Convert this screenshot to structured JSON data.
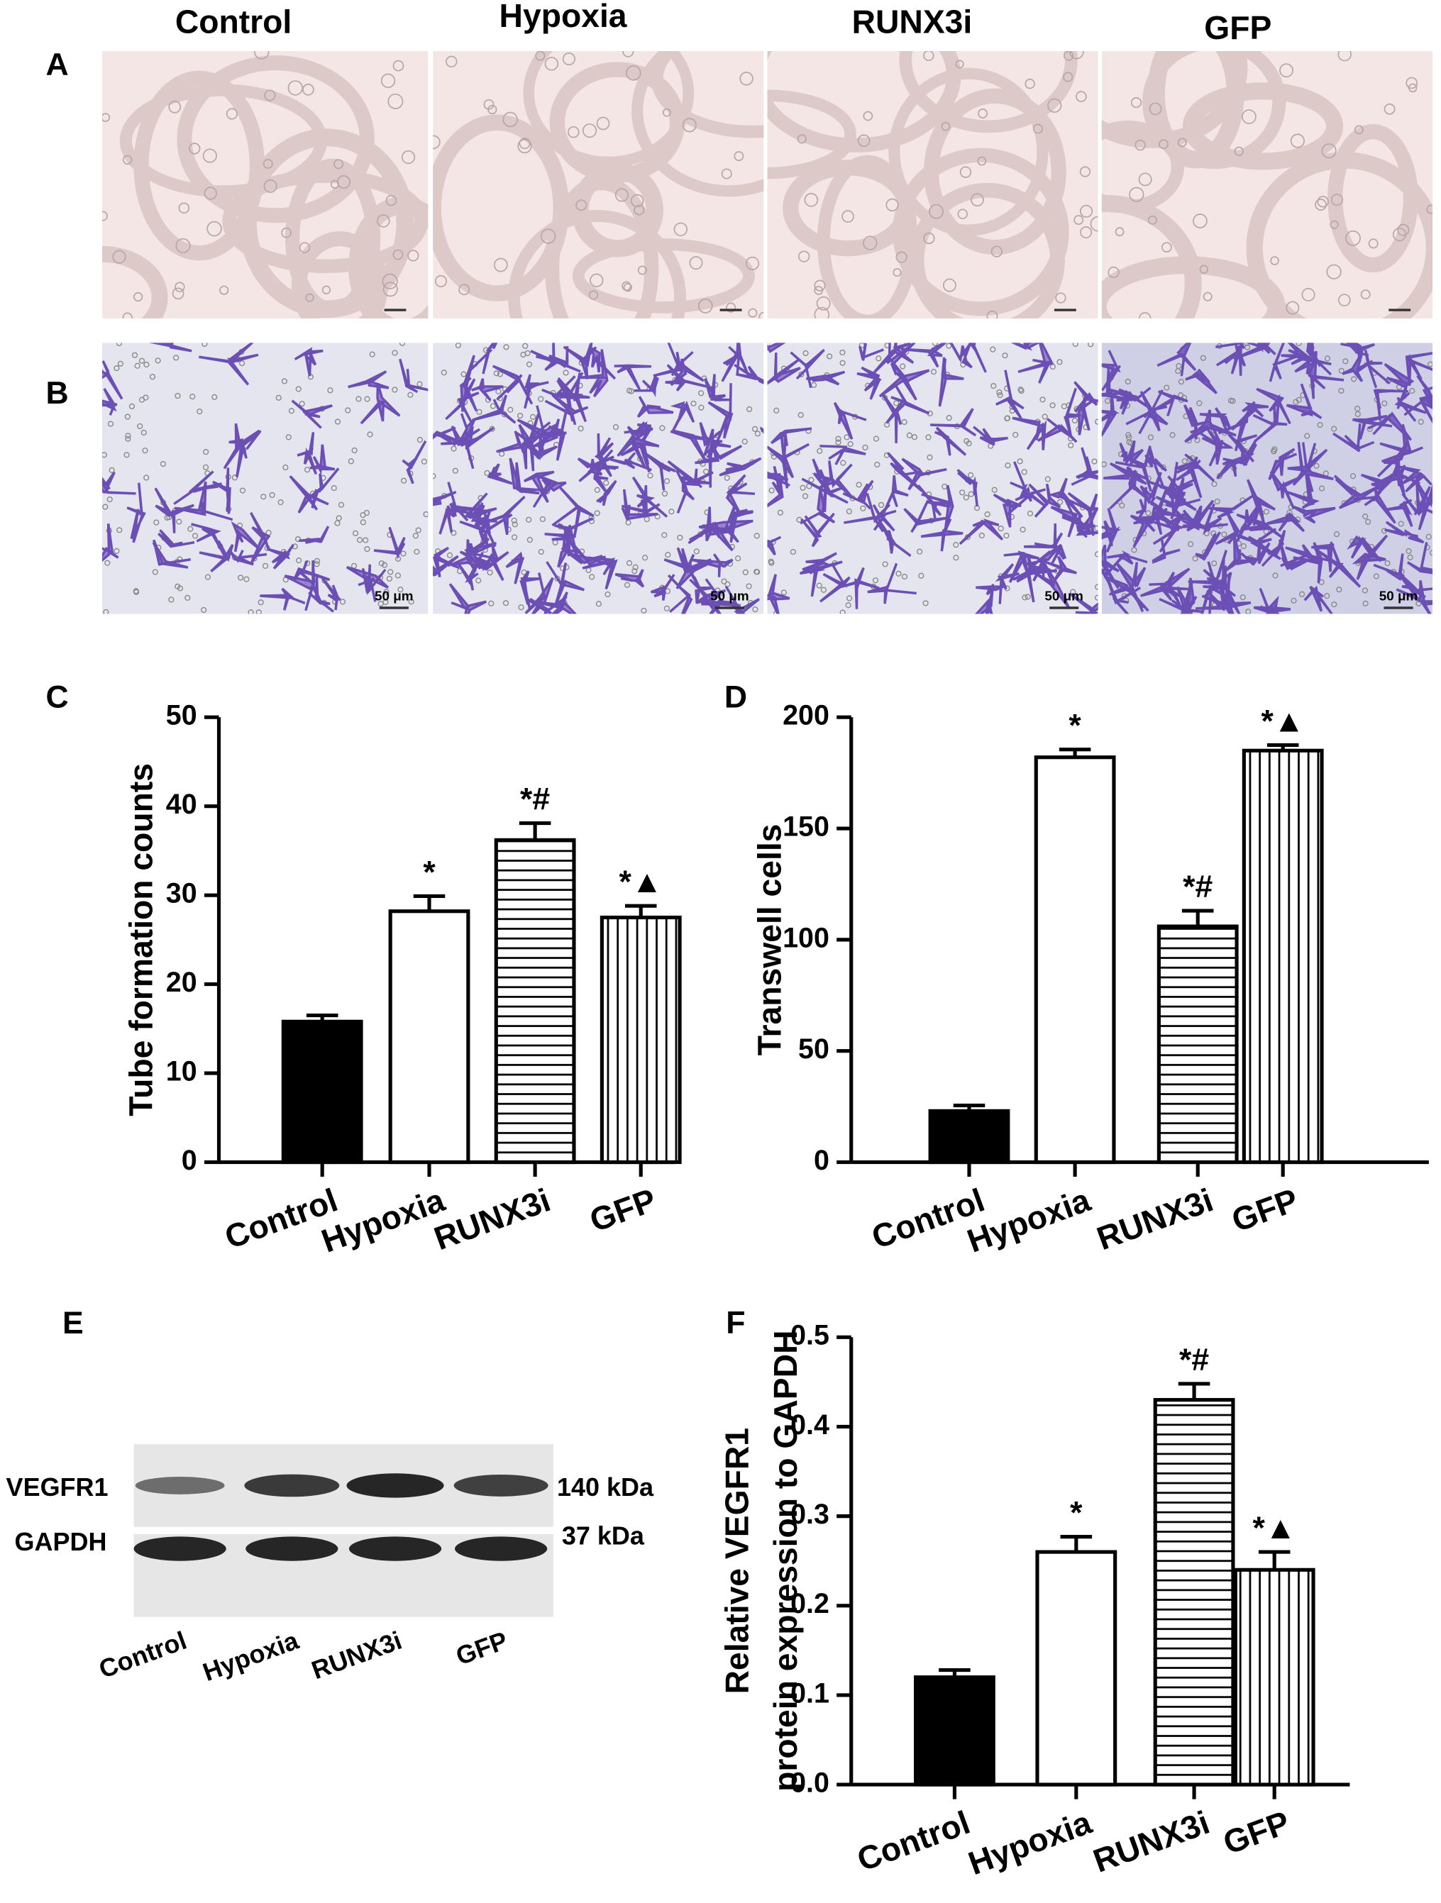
{
  "figure": {
    "panel_labels": [
      "A",
      "B",
      "C",
      "D",
      "E",
      "F"
    ],
    "column_labels": [
      "Control",
      "Hypoxia",
      "RUNX3i",
      "GFP"
    ],
    "scale_bar_label": "50 μm"
  },
  "blot": {
    "rows": [
      {
        "label": "VEGFR1",
        "size": "140 kDa"
      },
      {
        "label": "GAPDH",
        "size": "37 kDa"
      }
    ],
    "lanes": [
      "Control",
      "Hypoxia",
      "RUNX3i",
      "GFP"
    ]
  },
  "chart_data": [
    {
      "type": "bar",
      "y_label": [
        "Tube formation counts"
      ],
      "categories": [
        "Control",
        "Hypoxia",
        "RUNX3i",
        "GFP"
      ],
      "values": [
        15.8,
        28.2,
        36.2,
        27.5
      ],
      "errors": [
        0.7,
        1.7,
        1.9,
        1.3
      ],
      "annotations": [
        null,
        "*",
        "*#",
        "*▲"
      ],
      "fills": [
        "solid",
        "none",
        "horizontal",
        "vertical"
      ],
      "ylim": [
        0,
        50
      ],
      "yticks": [
        0,
        10,
        20,
        30,
        40,
        50
      ]
    },
    {
      "type": "bar",
      "y_label": [
        "Transwell cells"
      ],
      "categories": [
        "Control",
        "Hypoxia",
        "RUNX3i",
        "GFP"
      ],
      "values": [
        23,
        182,
        106,
        185
      ],
      "errors": [
        2.5,
        3.5,
        7,
        2.5
      ],
      "annotations": [
        null,
        "*",
        "*#",
        "*▲"
      ],
      "fills": [
        "solid",
        "none",
        "horizontal",
        "vertical"
      ],
      "ylim": [
        0,
        200
      ],
      "yticks": [
        0,
        50,
        100,
        150,
        200
      ]
    },
    {
      "type": "bar",
      "y_label": [
        "Relative VEGFR1",
        "protein expression to GAPDH"
      ],
      "categories": [
        "Control",
        "Hypoxia",
        "RUNX3i",
        "GFP"
      ],
      "values": [
        0.12,
        0.26,
        0.43,
        0.24
      ],
      "errors": [
        0.008,
        0.017,
        0.018,
        0.02
      ],
      "annotations": [
        null,
        "*",
        "*#",
        "*▲"
      ],
      "fills": [
        "solid",
        "none",
        "horizontal",
        "vertical"
      ],
      "ylim": [
        0,
        0.5
      ],
      "yticks": [
        {
          "value": 0,
          "label": "0.0"
        },
        0.1,
        0.2,
        0.3,
        0.4,
        0.5
      ]
    }
  ]
}
